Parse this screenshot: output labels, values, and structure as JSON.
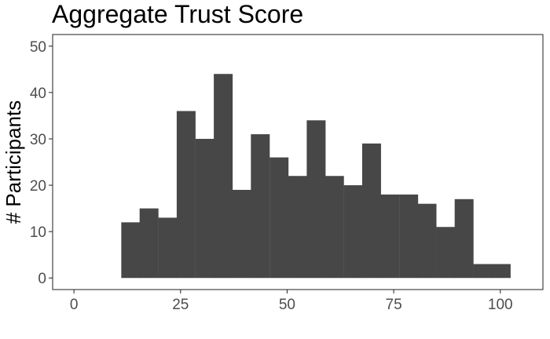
{
  "chart_data": {
    "type": "bar",
    "title": "Aggregate Trust Score",
    "xlabel": "",
    "ylabel": "# Participants",
    "xlim": [
      -5,
      110
    ],
    "ylim": [
      -2.5,
      52.5
    ],
    "x_ticks": [
      0,
      25,
      50,
      75,
      100
    ],
    "y_ticks": [
      0,
      10,
      20,
      30,
      40,
      50
    ],
    "grid": false,
    "bar_color": "#474747",
    "bin_width": 4.35,
    "bins": [
      {
        "start": 11.1,
        "count": 12
      },
      {
        "start": 15.4,
        "count": 15
      },
      {
        "start": 19.8,
        "count": 13
      },
      {
        "start": 24.1,
        "count": 36
      },
      {
        "start": 28.5,
        "count": 30
      },
      {
        "start": 32.8,
        "count": 44
      },
      {
        "start": 37.2,
        "count": 19
      },
      {
        "start": 41.5,
        "count": 31
      },
      {
        "start": 45.9,
        "count": 26
      },
      {
        "start": 50.2,
        "count": 22
      },
      {
        "start": 54.6,
        "count": 34
      },
      {
        "start": 58.9,
        "count": 22
      },
      {
        "start": 63.3,
        "count": 20
      },
      {
        "start": 67.6,
        "count": 29
      },
      {
        "start": 71.9,
        "count": 18
      },
      {
        "start": 76.3,
        "count": 18
      },
      {
        "start": 80.6,
        "count": 16
      },
      {
        "start": 85.0,
        "count": 11
      },
      {
        "start": 89.3,
        "count": 17
      },
      {
        "start": 93.7,
        "count": 3
      },
      {
        "start": 98.0,
        "count": 3
      }
    ]
  }
}
